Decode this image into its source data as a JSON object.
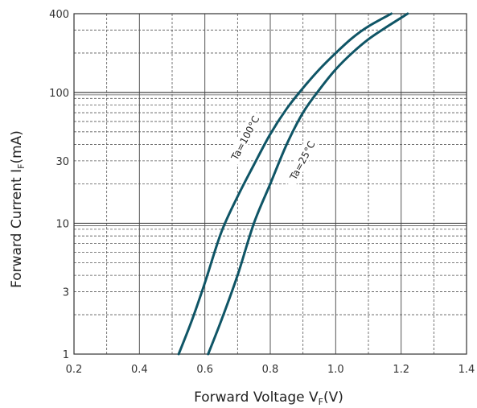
{
  "chart_data": {
    "type": "line",
    "title": "",
    "xlabel": "Forward Voltage V",
    "xlabel_sub": "F",
    "xlabel_suffix": "(V)",
    "ylabel": "Forward Current I",
    "ylabel_sub": "F",
    "ylabel_suffix": "(mA)",
    "xlim": [
      0.2,
      1.4
    ],
    "ylim": [
      1,
      400
    ],
    "yscale": "log",
    "grid": true,
    "line_color": "#0f5566",
    "x_ticks": [
      0.2,
      0.4,
      0.6,
      0.8,
      1.0,
      1.2,
      1.4
    ],
    "x_tick_labels": [
      "0.2",
      "0.4",
      "0.6",
      "0.8",
      "1.0",
      "1.2",
      "1.4"
    ],
    "y_ticks": [
      1,
      3,
      10,
      30,
      100,
      400
    ],
    "y_tick_labels": [
      "1",
      "3",
      "10",
      "30",
      "100",
      "400"
    ],
    "series": [
      {
        "name": "Ta=100°C",
        "x": [
          0.52,
          0.56,
          0.6,
          0.65,
          0.7,
          0.75,
          0.8,
          0.85,
          0.9,
          0.95,
          1.0,
          1.05,
          1.1,
          1.17
        ],
        "y": [
          1,
          1.8,
          3.5,
          8.5,
          16,
          28,
          48,
          75,
          108,
          150,
          200,
          260,
          320,
          400
        ]
      },
      {
        "name": "Ta=25°C",
        "x": [
          0.61,
          0.65,
          0.7,
          0.75,
          0.8,
          0.85,
          0.9,
          0.95,
          1.0,
          1.05,
          1.1,
          1.15,
          1.22
        ],
        "y": [
          1,
          1.8,
          4,
          10,
          20,
          40,
          70,
          105,
          150,
          200,
          255,
          310,
          400
        ]
      }
    ]
  }
}
